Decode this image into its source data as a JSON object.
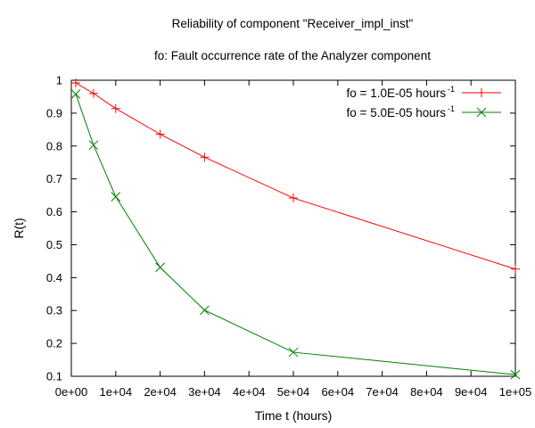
{
  "chart_data": {
    "type": "line",
    "title": "Reliability of component \"Receiver_impl_inst\"",
    "subtitle": "fo: Fault occurrence rate of the Analyzer component",
    "xlabel": "Time t (hours)",
    "ylabel": "R(t)",
    "xlim": [
      0,
      100000
    ],
    "ylim": [
      0.1,
      1
    ],
    "x_ticks": [
      0,
      10000,
      20000,
      30000,
      40000,
      50000,
      60000,
      70000,
      80000,
      90000,
      100000
    ],
    "x_tick_labels": [
      "0e+00",
      "1e+04",
      "2e+04",
      "3e+04",
      "4e+04",
      "5e+04",
      "6e+04",
      "7e+04",
      "8e+04",
      "9e+04",
      "1e+05"
    ],
    "y_ticks": [
      0.1,
      0.2,
      0.3,
      0.4,
      0.5,
      0.6,
      0.7,
      0.8,
      0.9,
      1
    ],
    "y_tick_labels": [
      "0.1",
      "0.2",
      "0.3",
      "0.4",
      "0.5",
      "0.6",
      "0.7",
      "0.8",
      "0.9",
      "1"
    ],
    "grid": false,
    "legend_position": "top-right",
    "series": [
      {
        "name": "fo = 1.0E-05 hours",
        "name_superscript": "-1",
        "color": "#ff0000",
        "marker": "plus",
        "x": [
          1000,
          5000,
          10000,
          20000,
          30000,
          50000,
          100000
        ],
        "y": [
          0.992,
          0.96,
          0.914,
          0.836,
          0.766,
          0.642,
          0.426
        ]
      },
      {
        "name": "fo = 5.0E-05 hours",
        "name_superscript": "-1",
        "color": "#008000",
        "marker": "cross",
        "x": [
          1000,
          5000,
          10000,
          20000,
          30000,
          50000,
          100000
        ],
        "y": [
          0.958,
          0.803,
          0.646,
          0.431,
          0.301,
          0.173,
          0.105
        ]
      }
    ]
  }
}
